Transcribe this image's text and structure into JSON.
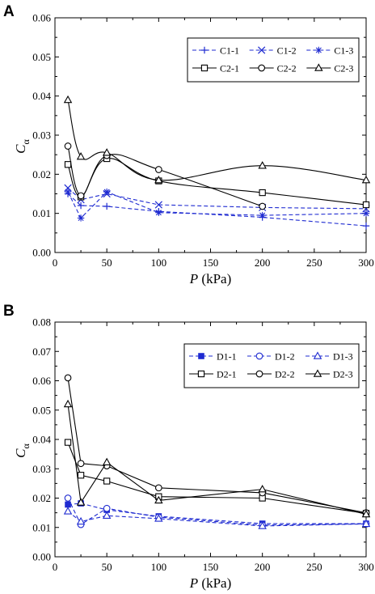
{
  "chart_data": [
    {
      "panel": "A",
      "type": "line",
      "xlabel_italic": "P",
      "xlabel_rest": " (kPa)",
      "ylabel_main": "C",
      "ylabel_sub": "α",
      "xlim": [
        0,
        300
      ],
      "ylim": [
        0.0,
        0.06
      ],
      "xticks": [
        "0",
        "50",
        "100",
        "150",
        "200",
        "250",
        "300"
      ],
      "yticks": [
        "0.00",
        "0.01",
        "0.02",
        "0.03",
        "0.04",
        "0.05",
        "0.06"
      ],
      "grid": false,
      "legend_position": "top-right",
      "series": [
        {
          "name": "C1-1",
          "color": "#1f2bd1",
          "dashed": true,
          "marker": "plus",
          "x": [
            12.5,
            25,
            50,
            100,
            200,
            300
          ],
          "y": [
            0.015,
            0.012,
            0.0118,
            0.0105,
            0.009,
            0.0068
          ]
        },
        {
          "name": "C1-2",
          "color": "#1f2bd1",
          "dashed": true,
          "marker": "x",
          "x": [
            12.5,
            25,
            50,
            100,
            200,
            300
          ],
          "y": [
            0.0165,
            0.0135,
            0.015,
            0.0122,
            0.0115,
            0.0112
          ]
        },
        {
          "name": "C1-3",
          "color": "#1f2bd1",
          "dashed": true,
          "marker": "star",
          "x": [
            12.5,
            25,
            50,
            100,
            200,
            300
          ],
          "y": [
            0.0155,
            0.0088,
            0.0155,
            0.0102,
            0.0095,
            0.01
          ]
        },
        {
          "name": "C2-1",
          "color": "#000000",
          "dashed": false,
          "marker": "square",
          "x": [
            12.5,
            25,
            50,
            100,
            200,
            300
          ],
          "y": [
            0.0225,
            0.0142,
            0.024,
            0.0183,
            0.0153,
            0.0122
          ]
        },
        {
          "name": "C2-2",
          "color": "#000000",
          "dashed": false,
          "marker": "circle",
          "x": [
            12.5,
            25,
            50,
            100,
            200
          ],
          "y": [
            0.0272,
            0.0145,
            0.0248,
            0.0212,
            0.0118
          ]
        },
        {
          "name": "C2-3",
          "color": "#000000",
          "dashed": false,
          "marker": "triangle",
          "x": [
            12.5,
            25,
            50,
            100,
            200,
            300
          ],
          "y": [
            0.039,
            0.0245,
            0.0255,
            0.0185,
            0.0222,
            0.0185
          ]
        }
      ]
    },
    {
      "panel": "B",
      "type": "line",
      "xlabel_italic": "P",
      "xlabel_rest": " (kPa)",
      "ylabel_main": "C",
      "ylabel_sub": "α",
      "xlim": [
        0,
        300
      ],
      "ylim": [
        0.0,
        0.08
      ],
      "xticks": [
        "0",
        "50",
        "100",
        "150",
        "200",
        "250",
        "300"
      ],
      "yticks": [
        "0.00",
        "0.01",
        "0.02",
        "0.03",
        "0.04",
        "0.05",
        "0.06",
        "0.07",
        "0.08"
      ],
      "grid": false,
      "legend_position": "top-right",
      "series": [
        {
          "name": "D1-1",
          "color": "#1f2bd1",
          "dashed": true,
          "marker": "square-filled",
          "x": [
            12.5,
            25,
            50,
            100,
            200,
            300
          ],
          "y": [
            0.0178,
            0.0182,
            0.016,
            0.0138,
            0.0113,
            0.0113
          ]
        },
        {
          "name": "D1-2",
          "color": "#1f2bd1",
          "dashed": true,
          "marker": "circle",
          "x": [
            12.5,
            25,
            50,
            100,
            200,
            300
          ],
          "y": [
            0.02,
            0.011,
            0.0165,
            0.0135,
            0.0108,
            0.0112
          ]
        },
        {
          "name": "D1-3",
          "color": "#1f2bd1",
          "dashed": true,
          "marker": "triangle",
          "x": [
            12.5,
            25,
            50,
            100,
            200,
            300
          ],
          "y": [
            0.0155,
            0.012,
            0.014,
            0.013,
            0.0105,
            0.0112
          ]
        },
        {
          "name": "D2-1",
          "color": "#000000",
          "dashed": false,
          "marker": "square",
          "x": [
            12.5,
            25,
            50,
            100,
            200,
            300
          ],
          "y": [
            0.039,
            0.0278,
            0.0258,
            0.0205,
            0.02,
            0.0148
          ]
        },
        {
          "name": "D2-2",
          "color": "#000000",
          "dashed": false,
          "marker": "circle",
          "x": [
            12.5,
            25,
            50,
            100,
            200,
            300
          ],
          "y": [
            0.061,
            0.0318,
            0.031,
            0.0235,
            0.0218,
            0.015
          ]
        },
        {
          "name": "D2-3",
          "color": "#000000",
          "dashed": false,
          "marker": "triangle",
          "x": [
            12.5,
            25,
            50,
            100,
            200,
            300
          ],
          "y": [
            0.052,
            0.0185,
            0.0322,
            0.0192,
            0.023,
            0.0145
          ]
        }
      ]
    }
  ]
}
